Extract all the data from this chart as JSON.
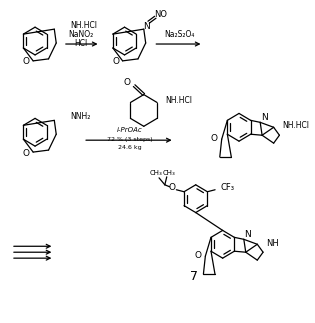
{
  "background_color": "#ffffff",
  "dpi": 100,
  "figsize": [
    3.15,
    3.23
  ],
  "bond_color": "#000000",
  "text_color": "#000000",
  "reagent1a": "NaNO",
  "reagent1b": "2",
  "reagent1c": "HCl",
  "reagent2": "Na",
  "reagent2b": "2",
  "reagent2c": "S",
  "reagent2d": "2",
  "reagent2e": "O",
  "reagent2f": "4",
  "reagent3a": "i-PrOAc",
  "reagent3b": "72 % (3 steps)",
  "reagent3c": "24.6 kg",
  "label7": "7",
  "lw": 0.9
}
